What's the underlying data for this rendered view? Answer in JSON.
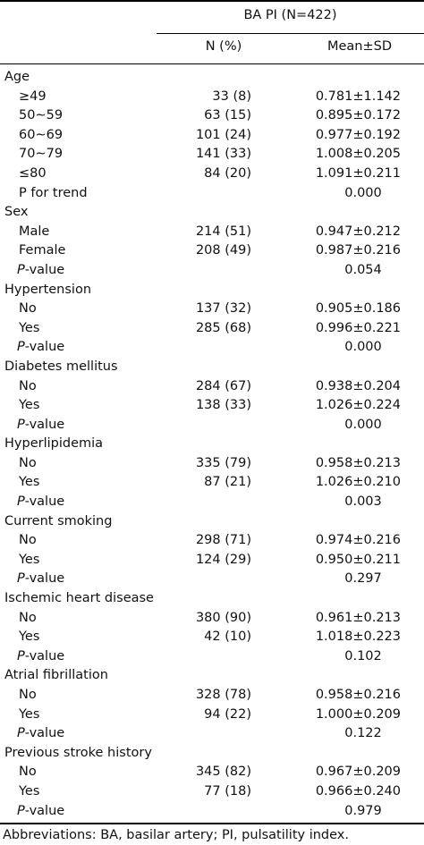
{
  "header": {
    "group": "BA PI (N=422)",
    "col_n": "N (%)",
    "col_mean": "Mean±SD"
  },
  "rows": [
    {
      "kind": "category",
      "label": "Age"
    },
    {
      "kind": "data",
      "label": "≥49",
      "n": "33 (8)",
      "mean": "0.781±1.142"
    },
    {
      "kind": "data",
      "label": "50∼59",
      "n": "63 (15)",
      "mean": "0.895±0.172"
    },
    {
      "kind": "data",
      "label": "60∼69",
      "n": "101 (24)",
      "mean": "0.977±0.192"
    },
    {
      "kind": "data",
      "label": "70∼79",
      "n": "141 (33)",
      "mean": "1.008±0.205"
    },
    {
      "kind": "data",
      "label": "≤80",
      "n": "84 (20)",
      "mean": "1.091±0.211"
    },
    {
      "kind": "p",
      "label": "P for trend",
      "italic": false,
      "p": "0.000"
    },
    {
      "kind": "category",
      "label": "Sex"
    },
    {
      "kind": "data",
      "label": "Male",
      "n": "214 (51)",
      "mean": "0.947±0.212"
    },
    {
      "kind": "data",
      "label": "Female",
      "n": "208 (49)",
      "mean": "0.987±0.216"
    },
    {
      "kind": "p",
      "label": "-value",
      "italic": true,
      "p": "0.054"
    },
    {
      "kind": "category",
      "label": "Hypertension"
    },
    {
      "kind": "data",
      "label": "No",
      "n": "137 (32)",
      "mean": "0.905±0.186"
    },
    {
      "kind": "data",
      "label": "Yes",
      "n": "285 (68)",
      "mean": "0.996±0.221"
    },
    {
      "kind": "p",
      "label": "-value",
      "italic": true,
      "p": "0.000"
    },
    {
      "kind": "category",
      "label": "Diabetes mellitus"
    },
    {
      "kind": "data",
      "label": "No",
      "n": "284 (67)",
      "mean": "0.938±0.204"
    },
    {
      "kind": "data",
      "label": "Yes",
      "n": "138 (33)",
      "mean": "1.026±0.224"
    },
    {
      "kind": "p",
      "label": "-value",
      "italic": true,
      "p": "0.000"
    },
    {
      "kind": "category",
      "label": "Hyperlipidemia"
    },
    {
      "kind": "data",
      "label": "No",
      "n": "335 (79)",
      "mean": "0.958±0.213"
    },
    {
      "kind": "data",
      "label": "Yes",
      "n": "87 (21)",
      "mean": "1.026±0.210"
    },
    {
      "kind": "p",
      "label": "-value",
      "italic": true,
      "p": "0.003"
    },
    {
      "kind": "category",
      "label": "Current smoking"
    },
    {
      "kind": "data",
      "label": "No",
      "n": "298 (71)",
      "mean": "0.974±0.216"
    },
    {
      "kind": "data",
      "label": "Yes",
      "n": "124 (29)",
      "mean": "0.950±0.211"
    },
    {
      "kind": "p",
      "label": "-value",
      "italic": true,
      "p": "0.297"
    },
    {
      "kind": "category",
      "label": "Ischemic heart disease"
    },
    {
      "kind": "data",
      "label": "No",
      "n": "380 (90)",
      "mean": "0.961±0.213"
    },
    {
      "kind": "data",
      "label": "Yes",
      "n": "42 (10)",
      "mean": "1.018±0.223"
    },
    {
      "kind": "p",
      "label": "-value",
      "italic": true,
      "p": "0.102"
    },
    {
      "kind": "category",
      "label": "Atrial fibrillation"
    },
    {
      "kind": "data",
      "label": "No",
      "n": "328 (78)",
      "mean": "0.958±0.216"
    },
    {
      "kind": "data",
      "label": "Yes",
      "n": "94 (22)",
      "mean": "1.000±0.209"
    },
    {
      "kind": "p",
      "label": "-value",
      "italic": true,
      "p": "0.122"
    },
    {
      "kind": "category",
      "label": "Previous stroke history"
    },
    {
      "kind": "data",
      "label": "No",
      "n": "345 (82)",
      "mean": "0.967±0.209"
    },
    {
      "kind": "data",
      "label": "Yes",
      "n": "77 (18)",
      "mean": "0.966±0.240"
    },
    {
      "kind": "p",
      "label": "-value",
      "italic": true,
      "p": "0.979"
    }
  ],
  "p_symbol": "P",
  "footnote": "Abbreviations: BA, basilar artery; PI, pulsatility index."
}
